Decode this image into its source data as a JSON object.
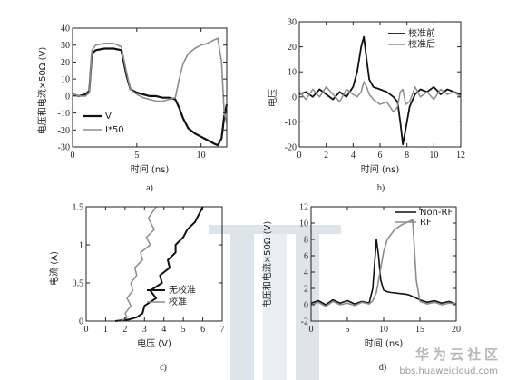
{
  "chart_data": [
    {
      "panel": "a)",
      "type": "line",
      "xlabel": "时间 (ns)",
      "ylabel": "电压和电流×50Ω (V)",
      "xlim": [
        0,
        12
      ],
      "ylim": [
        -30,
        40
      ],
      "xticks": [
        0,
        5,
        10
      ],
      "yticks": [
        -30,
        -20,
        -10,
        0,
        10,
        20,
        30,
        40
      ],
      "legend": "bottom-left",
      "series": [
        {
          "name": "V",
          "color": "#111111",
          "width": 2.2,
          "x": [
            0,
            0.5,
            1,
            1.3,
            1.5,
            1.8,
            2.5,
            3.2,
            3.8,
            4.2,
            4.5,
            5,
            5.5,
            6,
            6.5,
            7,
            7.5,
            8,
            8.3,
            8.6,
            9,
            9.5,
            10,
            10.5,
            11,
            11.3,
            11.6,
            11.8,
            12
          ],
          "y": [
            1,
            0,
            1,
            3,
            25,
            27,
            28,
            28,
            27,
            12,
            4,
            2,
            1,
            0,
            0,
            -1,
            -1,
            -2,
            -7,
            -13,
            -19,
            -22,
            -24,
            -26,
            -28,
            -29,
            -25,
            -12,
            -5
          ]
        },
        {
          "name": "I*50",
          "color": "#8c8c8c",
          "width": 1.6,
          "x": [
            0,
            0.5,
            1,
            1.3,
            1.5,
            1.8,
            2.5,
            3.2,
            3.8,
            4.2,
            4.5,
            5,
            5.5,
            6,
            6.5,
            7,
            7.5,
            8,
            8.3,
            8.6,
            9,
            9.5,
            10,
            10.5,
            11,
            11.3,
            11.6,
            11.8,
            12
          ],
          "y": [
            1,
            0,
            0,
            2,
            27,
            30,
            31,
            31,
            29,
            14,
            4,
            1,
            -1,
            -2,
            -3,
            -3,
            -2,
            -1,
            10,
            19,
            25,
            28,
            30,
            31,
            33,
            34,
            20,
            -10,
            -16
          ]
        }
      ]
    },
    {
      "panel": "b)",
      "type": "line",
      "xlabel": "时间 (ns)",
      "ylabel": "电压",
      "xlim": [
        0,
        12
      ],
      "ylim": [
        -20,
        30
      ],
      "xticks": [
        0,
        2,
        4,
        6,
        8,
        10,
        12
      ],
      "yticks": [
        -20,
        -10,
        0,
        10,
        20,
        30
      ],
      "legend": "top-right",
      "series": [
        {
          "name": "校准前",
          "color": "#111111",
          "width": 1.8,
          "x": [
            0,
            0.5,
            1,
            1.5,
            2,
            2.5,
            3,
            3.5,
            4,
            4.3,
            4.6,
            4.8,
            5,
            5.2,
            5.5,
            6,
            6.5,
            7,
            7.3,
            7.5,
            7.7,
            7.9,
            8.2,
            8.6,
            9,
            9.5,
            10,
            10.5,
            11,
            11.5,
            12
          ],
          "y": [
            1,
            2,
            0,
            3,
            1,
            -1,
            2,
            0,
            4,
            10,
            20,
            24,
            15,
            7,
            4,
            3,
            2,
            0,
            -2,
            -10,
            -19,
            -13,
            -4,
            1,
            3,
            2,
            4,
            1,
            3,
            2,
            1
          ]
        },
        {
          "name": "校准后",
          "color": "#8c8c8c",
          "width": 1.5,
          "x": [
            0,
            0.5,
            1,
            1.5,
            2,
            2.5,
            3,
            3.5,
            4,
            4.3,
            4.6,
            4.8,
            5,
            5.2,
            5.5,
            6,
            6.5,
            7,
            7.3,
            7.5,
            7.7,
            7.9,
            8.2,
            8.6,
            9,
            9.5,
            10,
            10.5,
            11,
            11.5,
            12
          ],
          "y": [
            2,
            -1,
            3,
            0,
            4,
            1,
            -2,
            3,
            1,
            0,
            2,
            6,
            4,
            1,
            -1,
            -3,
            -2,
            -6,
            -4,
            2,
            3,
            -3,
            -2,
            4,
            0,
            2,
            -1,
            3,
            1,
            2,
            0
          ]
        }
      ]
    },
    {
      "panel": "c)",
      "type": "line",
      "xlabel": "电压 (V)",
      "ylabel": "电流 (A)",
      "xlim": [
        0,
        7
      ],
      "ylim": [
        0,
        1.5
      ],
      "xticks": [
        0,
        1,
        2,
        3,
        4,
        5,
        6,
        7
      ],
      "yticks": [
        0,
        0.5,
        1,
        1.5
      ],
      "legend": "bottom-right",
      "series": [
        {
          "name": "无校准",
          "color": "#111111",
          "width": 2.0,
          "x": [
            1.5,
            2.2,
            2.6,
            2.9,
            3.0,
            3.6,
            3.3,
            3.9,
            3.8,
            4.3,
            4.2,
            4.6,
            4.6,
            5.0,
            5.2,
            5.6,
            5.8,
            6.0
          ],
          "y": [
            0,
            0.02,
            0.05,
            0.1,
            0.2,
            0.3,
            0.4,
            0.5,
            0.6,
            0.7,
            0.8,
            0.9,
            1.0,
            1.1,
            1.2,
            1.3,
            1.4,
            1.5
          ]
        },
        {
          "name": "校准",
          "color": "#8c8c8c",
          "width": 1.5,
          "x": [
            1.8,
            2.1,
            2.0,
            2.3,
            2.1,
            2.4,
            2.3,
            2.6,
            2.5,
            2.9,
            2.8,
            3.3,
            3.1,
            3.5,
            3.2,
            3.6
          ],
          "y": [
            0,
            0.05,
            0.1,
            0.2,
            0.3,
            0.4,
            0.5,
            0.6,
            0.7,
            0.8,
            0.9,
            1.0,
            1.1,
            1.2,
            1.35,
            1.5
          ]
        }
      ]
    },
    {
      "panel": "d)",
      "type": "line",
      "xlabel": "时间 (ns)",
      "ylabel": "电压和电流×50Ω (V)",
      "xlim": [
        0,
        20
      ],
      "ylim": [
        -2,
        12
      ],
      "xticks": [
        0,
        5,
        10,
        15,
        20
      ],
      "yticks": [
        -2,
        0,
        2,
        4,
        6,
        8,
        10,
        12
      ],
      "legend": "top-right",
      "series": [
        {
          "name": "Non-RF",
          "color": "#111111",
          "width": 1.6,
          "x": [
            0,
            1,
            2,
            3,
            4,
            5,
            6,
            7,
            8,
            8.5,
            9,
            9.3,
            9.6,
            10,
            10.5,
            11,
            12,
            13,
            13.5,
            14,
            14.5,
            15,
            16,
            17,
            18,
            19,
            20
          ],
          "y": [
            0.2,
            0.5,
            0,
            0.6,
            0.2,
            0.5,
            0.1,
            0.4,
            0.2,
            2,
            8,
            6,
            3,
            1.8,
            1.6,
            1.5,
            1.4,
            1.3,
            1.2,
            1.0,
            0.8,
            0.6,
            0.3,
            0.5,
            0.2,
            0.4,
            0.1
          ]
        },
        {
          "name": "RF",
          "color": "#8c8c8c",
          "width": 1.6,
          "x": [
            0,
            1,
            2,
            3,
            4,
            5,
            6,
            7,
            8,
            8.5,
            9,
            9.5,
            10,
            10.5,
            11,
            11.5,
            12,
            12.5,
            13,
            13.5,
            14,
            14.5,
            15,
            16,
            17,
            18,
            19,
            20
          ],
          "y": [
            0,
            0.3,
            -0.2,
            0.4,
            0,
            0.2,
            -0.1,
            0.3,
            0.1,
            0.5,
            1.5,
            4,
            6.5,
            8,
            8.6,
            9.2,
            9.5,
            9.8,
            10.0,
            10.2,
            10.4,
            3,
            0.4,
            0.1,
            0.3,
            0,
            0.2,
            0.1
          ]
        }
      ]
    }
  ],
  "watermark": {
    "text": "华为云社区",
    "url": "bbs.huaweicloud.com"
  }
}
